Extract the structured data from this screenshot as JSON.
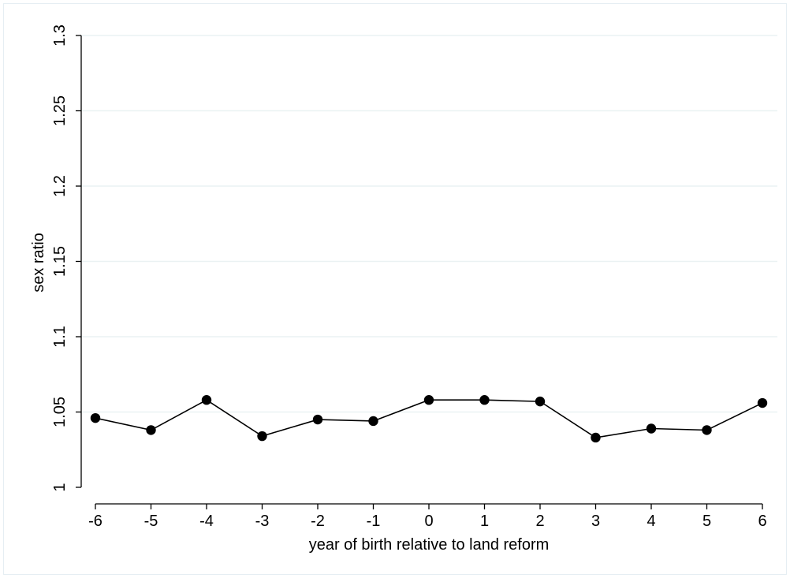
{
  "chart_data": {
    "type": "line",
    "title": "",
    "xlabel": "year of birth relative to land reform",
    "ylabel": "sex ratio",
    "x": [
      -6,
      -5,
      -4,
      -3,
      -2,
      -1,
      0,
      1,
      2,
      3,
      4,
      5,
      6
    ],
    "x_tick_labels": [
      "-6",
      "-5",
      "-4",
      "-3",
      "-2",
      "-1",
      "0",
      "1",
      "2",
      "3",
      "4",
      "5",
      "6"
    ],
    "y_ticks": [
      1,
      1.05,
      1.1,
      1.15,
      1.2,
      1.25,
      1.3
    ],
    "y_tick_labels": [
      "1",
      "1.05",
      "1.1",
      "1.15",
      "1.2",
      "1.25",
      "1.3"
    ],
    "xlim": [
      -6,
      6
    ],
    "ylim": [
      1,
      1.3
    ],
    "grid": "horizontal",
    "series": [
      {
        "values": [
          1.046,
          1.038,
          1.058,
          1.034,
          1.045,
          1.044,
          1.058,
          1.058,
          1.057,
          1.033,
          1.039,
          1.038,
          1.056
        ],
        "color": "#000000"
      }
    ],
    "colors": {
      "grid": "#eaf2f3",
      "axis": "#000000",
      "marker": "#000000"
    }
  }
}
